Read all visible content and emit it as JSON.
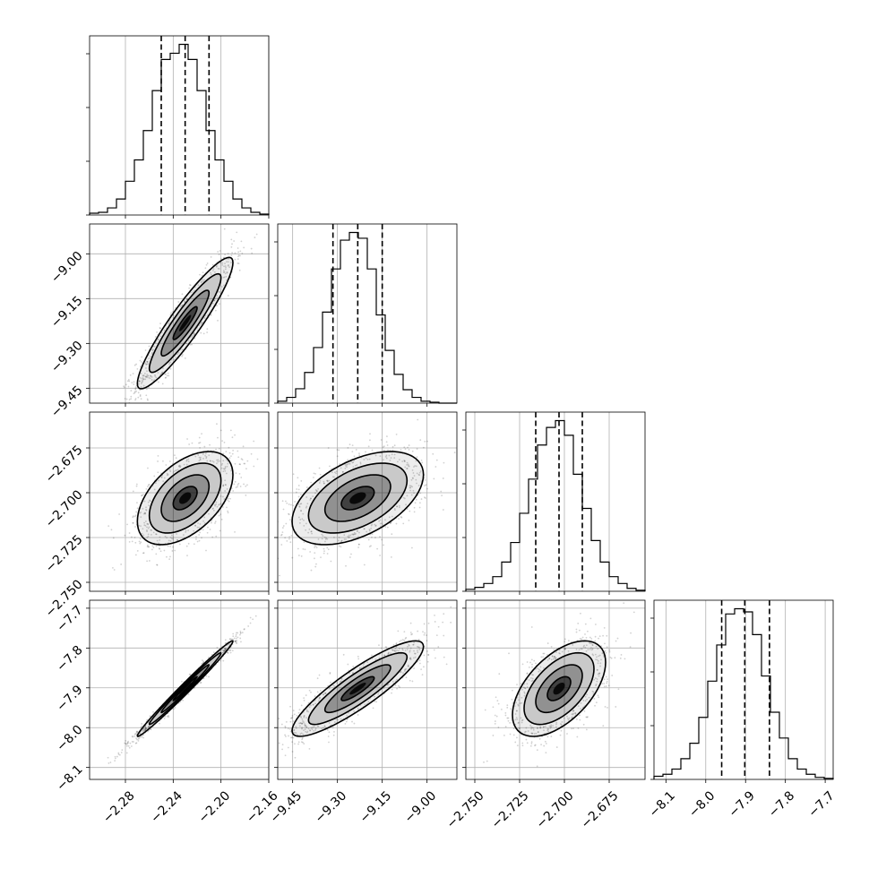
{
  "chart_data": {
    "type": "corner",
    "title": "",
    "grid": true,
    "parameters": [
      {
        "index": 0,
        "range": [
          -2.31,
          -2.16
        ],
        "ticks": [
          -2.28,
          -2.24,
          -2.2,
          -2.16
        ],
        "tick_labels": [
          "−2.28",
          "−2.24",
          "−2.20",
          "−2.16"
        ],
        "quantiles": [
          -2.25,
          -2.23,
          -2.21
        ]
      },
      {
        "index": 1,
        "range": [
          -9.5,
          -8.9
        ],
        "ticks": [
          -9.45,
          -9.3,
          -9.15,
          -9.0
        ],
        "tick_labels": [
          "−9.45",
          "−9.30",
          "−9.15",
          "−9.00"
        ],
        "quantiles": [
          -9.315,
          -9.232,
          -9.15
        ]
      },
      {
        "index": 2,
        "range": [
          -2.755,
          -2.655
        ],
        "ticks": [
          -2.75,
          -2.725,
          -2.7,
          -2.675
        ],
        "tick_labels": [
          "−2.750",
          "−2.725",
          "−2.700",
          "−2.675"
        ],
        "quantiles": [
          -2.716,
          -2.703,
          -2.69
        ]
      },
      {
        "index": 3,
        "range": [
          -8.13,
          -7.68
        ],
        "ticks": [
          -8.1,
          -8.0,
          -7.9,
          -7.8,
          -7.7
        ],
        "tick_labels": [
          "−8.1",
          "−8.0",
          "−7.9",
          "−7.8",
          "−7.7"
        ],
        "quantiles": [
          -7.96,
          -7.902,
          -7.84
        ]
      }
    ],
    "histograms": [
      {
        "param": 0,
        "bin_edges": [
          -2.31,
          -2.3025,
          -2.295,
          -2.2875,
          -2.28,
          -2.2725,
          -2.265,
          -2.2575,
          -2.25,
          -2.2425,
          -2.235,
          -2.2275,
          -2.22,
          -2.2125,
          -2.205,
          -2.1975,
          -2.19,
          -2.1825,
          -2.175,
          -2.1675,
          -2.16
        ],
        "counts": [
          2,
          3,
          8,
          18,
          38,
          62,
          95,
          140,
          175,
          182,
          192,
          175,
          140,
          95,
          62,
          38,
          18,
          8,
          3,
          1
        ]
      },
      {
        "param": 1,
        "bin_edges": [
          -9.5,
          -9.47,
          -9.44,
          -9.41,
          -9.38,
          -9.35,
          -9.32,
          -9.29,
          -9.26,
          -9.23,
          -9.2,
          -9.17,
          -9.14,
          -9.11,
          -9.08,
          -9.05,
          -9.02,
          -8.99,
          -8.96,
          -8.93,
          -8.9
        ],
        "counts": [
          2,
          6,
          15,
          32,
          58,
          95,
          140,
          170,
          178,
          172,
          140,
          92,
          55,
          30,
          14,
          6,
          2,
          1,
          0,
          0
        ]
      },
      {
        "param": 2,
        "bin_edges": [
          -2.755,
          -2.75,
          -2.745,
          -2.74,
          -2.735,
          -2.73,
          -2.725,
          -2.72,
          -2.715,
          -2.71,
          -2.705,
          -2.7,
          -2.695,
          -2.69,
          -2.685,
          -2.68,
          -2.675,
          -2.67,
          -2.665,
          -2.66,
          -2.655
        ],
        "counts": [
          2,
          4,
          8,
          15,
          30,
          50,
          80,
          115,
          150,
          168,
          175,
          160,
          120,
          85,
          52,
          30,
          15,
          8,
          3,
          1
        ]
      },
      {
        "param": 3,
        "bin_edges": [
          -8.13,
          -8.1075,
          -8.085,
          -8.0625,
          -8.04,
          -8.0175,
          -7.995,
          -7.9725,
          -7.95,
          -7.9275,
          -7.905,
          -7.8825,
          -7.86,
          -7.8375,
          -7.815,
          -7.7925,
          -7.77,
          -7.7475,
          -7.725,
          -7.7025,
          -7.68
        ],
        "counts": [
          3,
          5,
          10,
          20,
          35,
          60,
          95,
          130,
          160,
          165,
          162,
          140,
          100,
          65,
          40,
          20,
          10,
          5,
          2,
          1
        ]
      }
    ],
    "pairs": [
      {
        "x_param": 0,
        "y_param": 1,
        "mean": [
          -2.23,
          -9.232
        ],
        "std": [
          0.02,
          0.11
        ],
        "correlation": 0.92,
        "levels_sigma": [
          0.5,
          1.0,
          1.5,
          2.0
        ]
      },
      {
        "x_param": 0,
        "y_param": 2,
        "mean": [
          -2.23,
          -2.703
        ],
        "std": [
          0.02,
          0.013
        ],
        "correlation": 0.5,
        "levels_sigma": [
          0.5,
          1.0,
          1.5,
          2.0
        ]
      },
      {
        "x_param": 1,
        "y_param": 2,
        "mean": [
          -9.232,
          -2.703
        ],
        "std": [
          0.11,
          0.013
        ],
        "correlation": 0.5,
        "levels_sigma": [
          0.5,
          1.0,
          1.5,
          2.0
        ]
      },
      {
        "x_param": 0,
        "y_param": 3,
        "mean": [
          -2.23,
          -7.902
        ],
        "std": [
          0.02,
          0.06
        ],
        "correlation": 0.99,
        "levels_sigma": [
          0.5,
          1.0,
          1.5,
          2.0
        ]
      },
      {
        "x_param": 1,
        "y_param": 3,
        "mean": [
          -9.232,
          -7.902
        ],
        "std": [
          0.11,
          0.06
        ],
        "correlation": 0.88,
        "levels_sigma": [
          0.5,
          1.0,
          1.5,
          2.0
        ]
      },
      {
        "x_param": 2,
        "y_param": 3,
        "mean": [
          -2.703,
          -7.902
        ],
        "std": [
          0.013,
          0.06
        ],
        "correlation": 0.55,
        "levels_sigma": [
          0.5,
          1.0,
          1.5,
          2.0
        ]
      }
    ],
    "colors": {
      "line": "#000000",
      "grid": "#b0b0b0",
      "points": "#000000"
    }
  }
}
